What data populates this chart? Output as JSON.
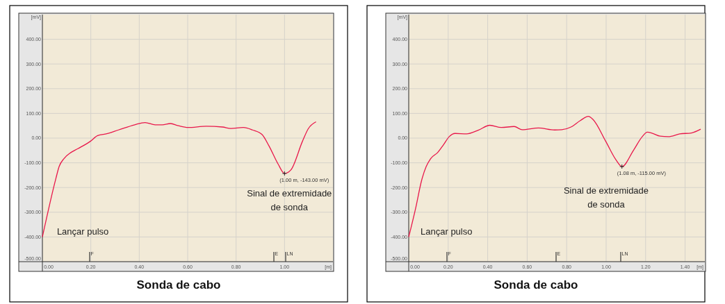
{
  "chart_data": [
    {
      "type": "line",
      "title": "Sonda de cabo",
      "xlabel": "[m]",
      "ylabel": "[mV]",
      "xlim": [
        0,
        1.2
      ],
      "ylim": [
        -500,
        500
      ],
      "xticks": [
        {
          "value": 0,
          "label": "0.00"
        },
        {
          "value": 0.2,
          "label": "0.20"
        },
        {
          "value": 0.4,
          "label": "0.40"
        },
        {
          "value": 0.6,
          "label": "0.60"
        },
        {
          "value": 0.8,
          "label": "0.80"
        },
        {
          "value": 1.0,
          "label": "1.00"
        }
      ],
      "yticks": [
        {
          "value": -500,
          "label": "-500.00"
        },
        {
          "value": -400,
          "label": "-400.00"
        },
        {
          "value": -300,
          "label": "-300.00"
        },
        {
          "value": -200,
          "label": "-200.00"
        },
        {
          "value": -100,
          "label": "-100.00"
        },
        {
          "value": 0,
          "label": "0.00"
        },
        {
          "value": 100,
          "label": "100.00"
        },
        {
          "value": 200,
          "label": "200.00"
        },
        {
          "value": 300,
          "label": "300.00"
        },
        {
          "value": 400,
          "label": "400.00"
        }
      ],
      "grid": true,
      "marker": "none",
      "line_style": "solid",
      "series": [
        {
          "color": "#e8174a",
          "x": [
            0,
            0.055,
            0.069,
            0.089,
            0.118,
            0.146,
            0.198,
            0.228,
            0.266,
            0.314,
            0.381,
            0.424,
            0.466,
            0.495,
            0.529,
            0.562,
            0.601,
            0.677,
            0.744,
            0.778,
            0.83,
            0.868,
            0.907,
            0.936,
            0.974,
            1.0,
            1.026,
            1.074,
            1.098,
            1.13
          ],
          "values": [
            -400,
            -166,
            -115,
            -83,
            -58,
            -43,
            -13,
            10,
            18,
            33,
            54,
            63,
            54,
            54,
            59,
            50,
            43,
            48,
            45,
            39,
            43,
            33,
            15,
            -32,
            -106,
            -143,
            -129,
            -13,
            38,
            66
          ]
        }
      ],
      "annotations": [
        {
          "text": "(1.00 m, -143.00 mV)",
          "x": 1.0,
          "y": -143
        },
        "Sinal de extremidade de sonda",
        "Lançar pulso",
        "F",
        "E",
        "LN"
      ]
    },
    {
      "type": "line",
      "title": "Sonda de cabo",
      "xlabel": "[m]",
      "ylabel": "[mV]",
      "xlim": [
        0,
        1.5
      ],
      "ylim": [
        -500,
        500
      ],
      "xticks": [
        {
          "value": 0,
          "label": "0.00"
        },
        {
          "value": 0.2,
          "label": "0.20"
        },
        {
          "value": 0.4,
          "label": "0.40"
        },
        {
          "value": 0.6,
          "label": "0.60"
        },
        {
          "value": 0.8,
          "label": "0.80"
        },
        {
          "value": 1.0,
          "label": "1.00"
        },
        {
          "value": 1.2,
          "label": "1.20"
        },
        {
          "value": 1.4,
          "label": "1.40"
        }
      ],
      "yticks": [
        {
          "value": -500,
          "label": "-500.00"
        },
        {
          "value": -400,
          "label": "-400.00"
        },
        {
          "value": -300,
          "label": "-300.00"
        },
        {
          "value": -200,
          "label": "-200.00"
        },
        {
          "value": -100,
          "label": "-100.00"
        },
        {
          "value": 0,
          "label": "0.00"
        },
        {
          "value": 100,
          "label": "100.00"
        },
        {
          "value": 200,
          "label": "200.00"
        },
        {
          "value": 300,
          "label": "300.00"
        },
        {
          "value": 400,
          "label": "400.00"
        }
      ],
      "grid": true,
      "marker": "none",
      "line_style": "solid",
      "series": [
        {
          "color": "#e8174a",
          "x": [
            0,
            0.035,
            0.065,
            0.088,
            0.111,
            0.147,
            0.176,
            0.205,
            0.235,
            0.293,
            0.352,
            0.411,
            0.469,
            0.534,
            0.575,
            0.657,
            0.739,
            0.775,
            0.822,
            0.869,
            0.91,
            0.933,
            0.998,
            1.05,
            1.08,
            1.138,
            1.183,
            1.209,
            1.232,
            1.274,
            1.315,
            1.373,
            1.432,
            1.479
          ],
          "values": [
            -400,
            -284,
            -172,
            -116,
            -83,
            -58,
            -27,
            6,
            19,
            17,
            32,
            52,
            43,
            47,
            34,
            41,
            33,
            34,
            45,
            71,
            88,
            76,
            -13,
            -88,
            -115,
            -50,
            6,
            24,
            20,
            8,
            6,
            17,
            21,
            36
          ]
        }
      ],
      "annotations": [
        {
          "text": "(1.08 m, -115.00 mV)",
          "x": 1.08,
          "y": -115
        },
        "Sinal de extremidade de sonda",
        "Lançar pulso",
        "F",
        "E",
        "LN"
      ]
    }
  ]
}
